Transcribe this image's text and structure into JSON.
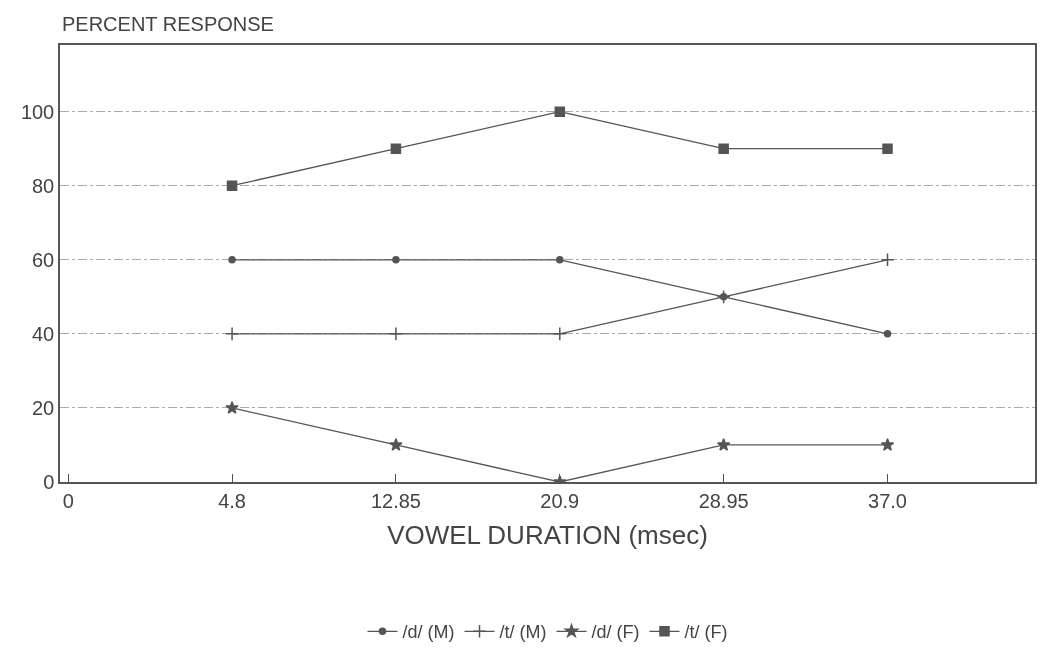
{
  "chart_data": {
    "type": "line",
    "ylabel": "PERCENT RESPONSE",
    "xlabel": "VOWEL DURATION (msec)",
    "categories": [
      "0",
      "4.8",
      "12.85",
      "20.9",
      "28.95",
      "37.0"
    ],
    "ylim": [
      0,
      118
    ],
    "yticks": [
      0,
      20,
      40,
      60,
      80,
      100
    ],
    "grid": "y",
    "legend": "bottom",
    "series": [
      {
        "name": "/d/ (M)",
        "color": "#555555",
        "marker": "circle",
        "values": [
          null,
          60,
          60,
          60,
          50,
          40
        ]
      },
      {
        "name": "/t/ (M)",
        "color": "#555555",
        "marker": "cross",
        "values": [
          null,
          40,
          40,
          40,
          50,
          60
        ]
      },
      {
        "name": "/d/ (F)",
        "color": "#555555",
        "marker": "star",
        "values": [
          null,
          20,
          10,
          0,
          10,
          10
        ]
      },
      {
        "name": "/t/ (F)",
        "color": "#555555",
        "marker": "square",
        "values": [
          null,
          80,
          90,
          100,
          90,
          90
        ]
      }
    ]
  }
}
